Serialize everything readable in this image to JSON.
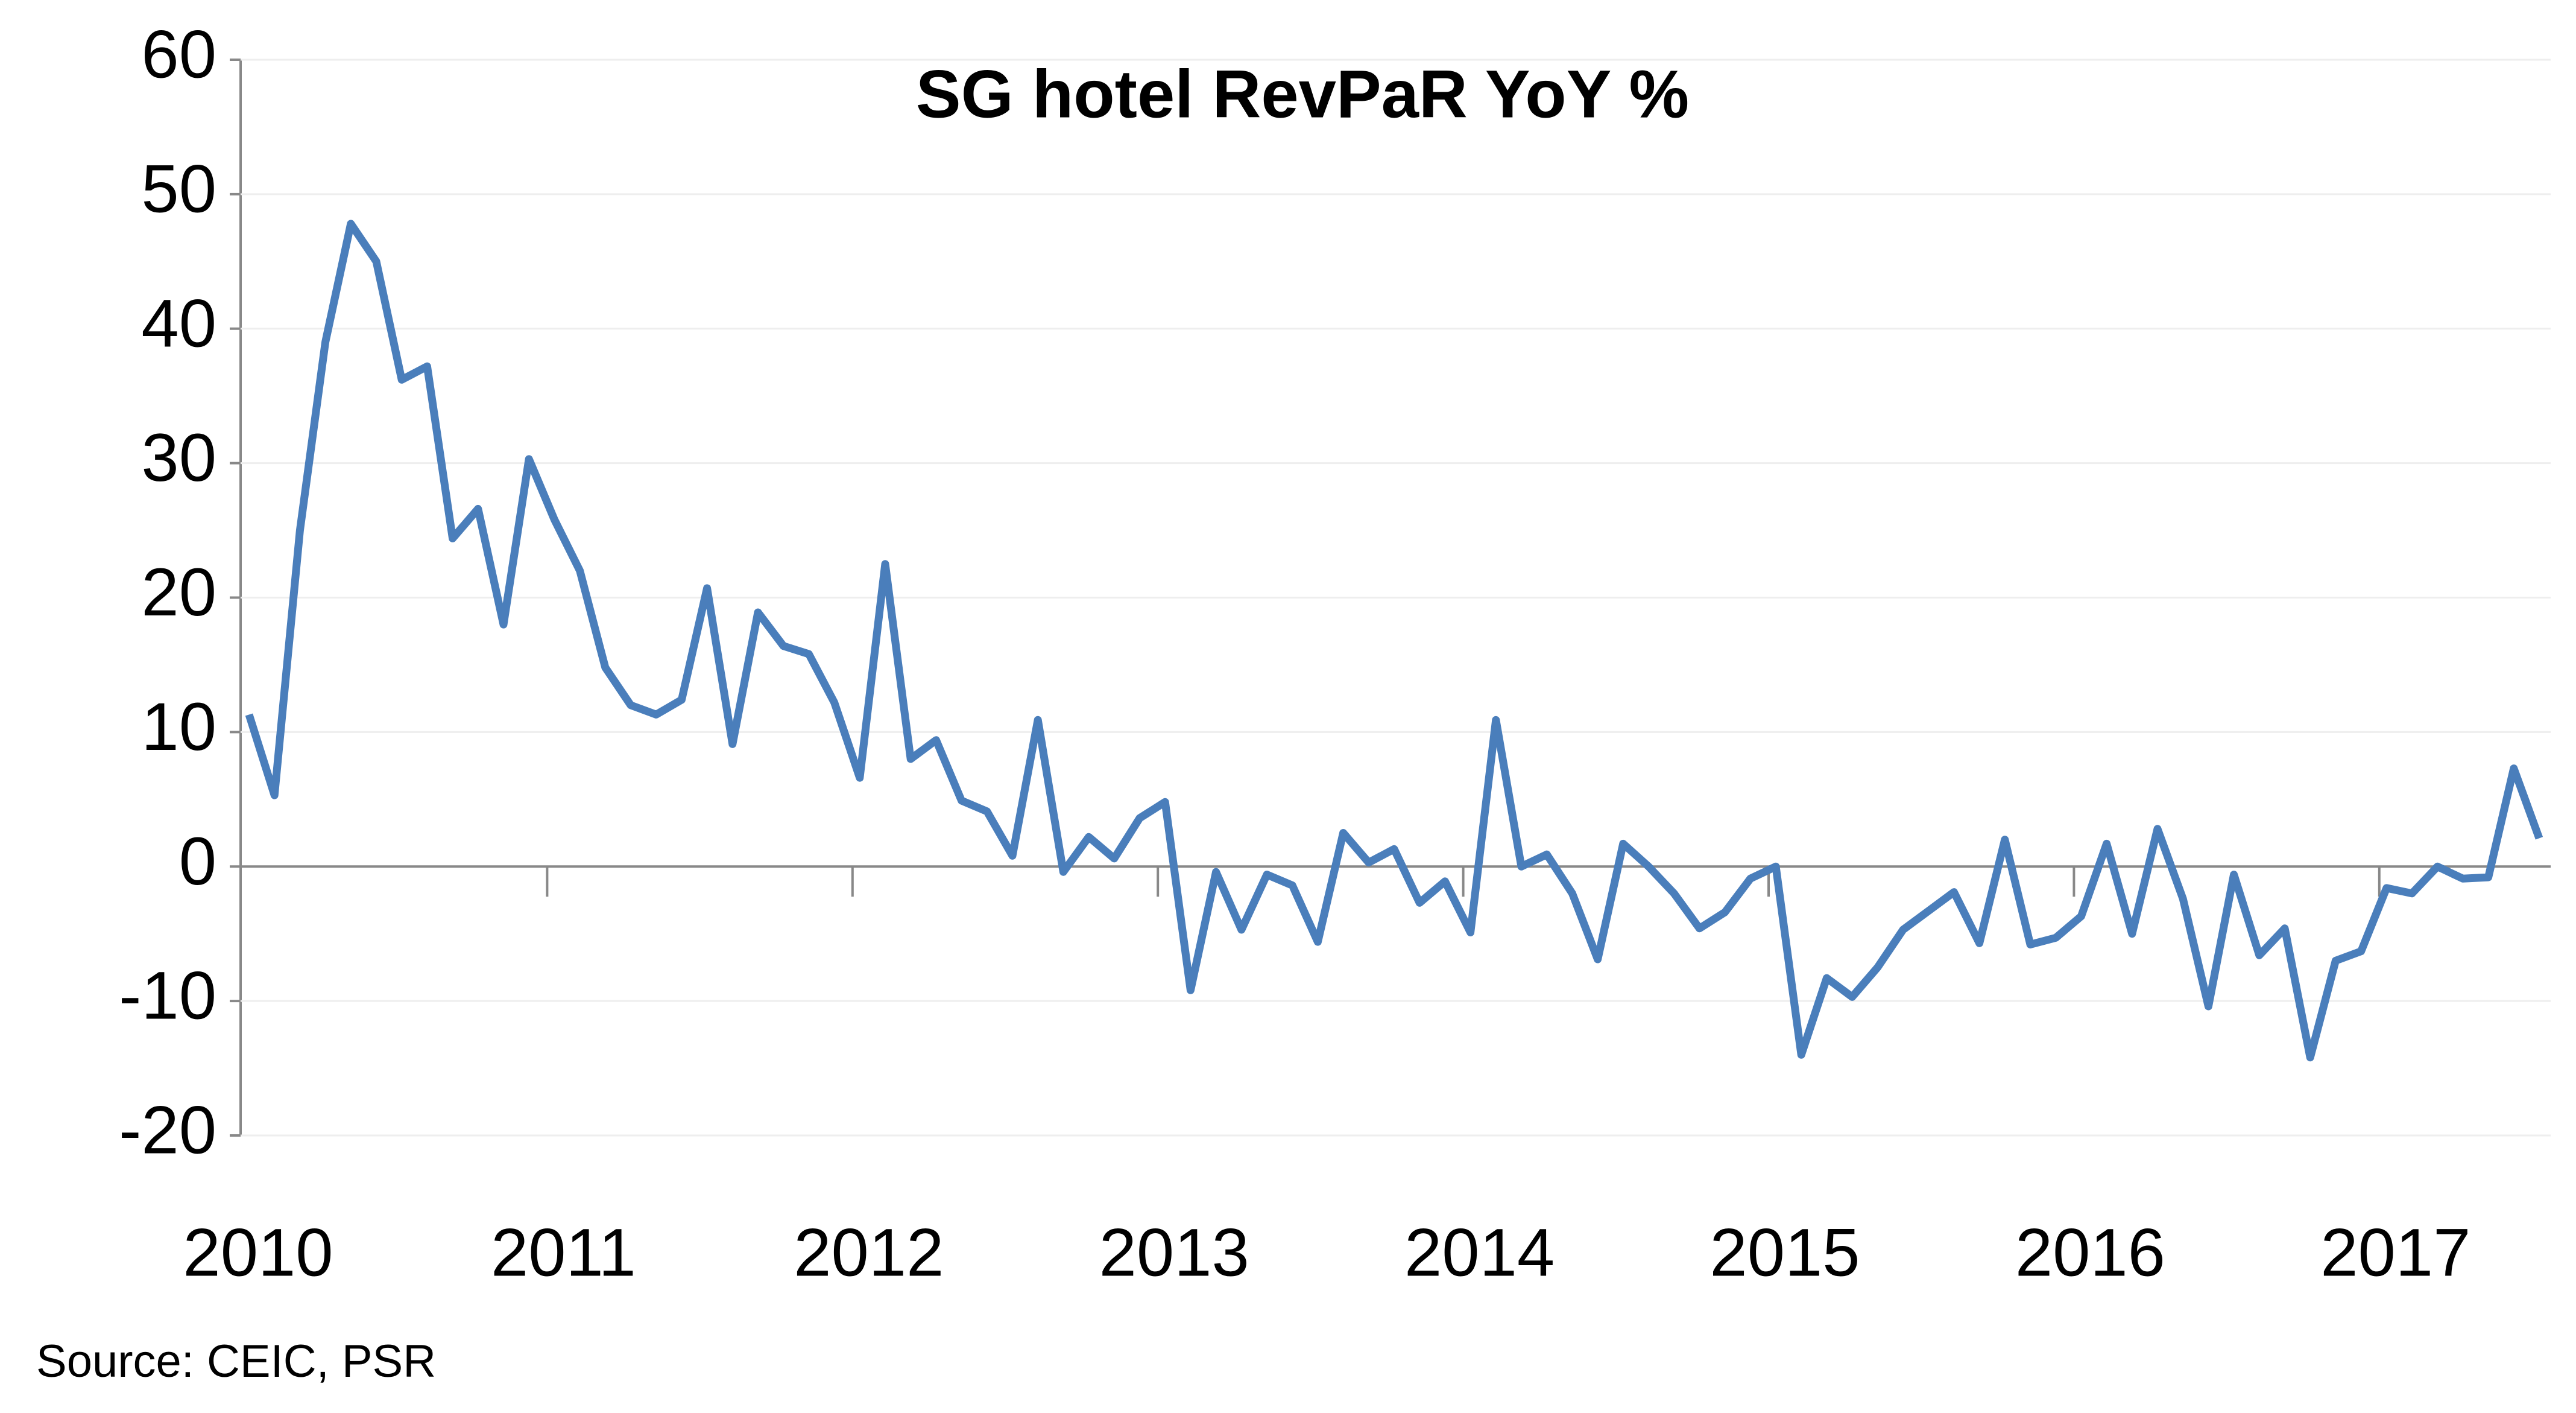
{
  "chart_data": {
    "type": "line",
    "title": "SG hotel RevPaR YoY %",
    "source": "Source: CEIC, PSR",
    "categories": [
      "2010",
      null,
      null,
      null,
      null,
      null,
      null,
      null,
      null,
      null,
      null,
      null,
      "2011",
      null,
      null,
      null,
      null,
      null,
      null,
      null,
      null,
      null,
      null,
      null,
      "2012",
      null,
      null,
      null,
      null,
      null,
      null,
      null,
      null,
      null,
      null,
      null,
      "2013",
      null,
      null,
      null,
      null,
      null,
      null,
      null,
      null,
      null,
      null,
      null,
      "2014",
      null,
      null,
      null,
      null,
      null,
      null,
      null,
      null,
      null,
      null,
      null,
      "2015",
      null,
      null,
      null,
      null,
      null,
      null,
      null,
      null,
      null,
      null,
      null,
      "2016",
      null,
      null,
      null,
      null,
      null,
      null,
      null,
      null,
      null,
      null,
      null,
      "2017",
      null,
      null,
      null,
      null,
      null,
      null
    ],
    "values": [
      11.3,
      5.3,
      25,
      39,
      47.8,
      45,
      36.2,
      37.2,
      24.4,
      26.6,
      18,
      30.3,
      25.8,
      22,
      14.8,
      12,
      11.3,
      12.4,
      20.7,
      9.1,
      18.9,
      16.4,
      15.8,
      12.2,
      6.6,
      22.5,
      8,
      9.4,
      4.9,
      4.1,
      0.8,
      10.9,
      -0.4,
      2.2,
      0.6,
      3.6,
      4.8,
      -9.2,
      -0.4,
      -4.7,
      -0.6,
      -1.4,
      -5.6,
      2.5,
      0.3,
      1.3,
      -2.7,
      -1.1,
      -4.9,
      10.9,
      0,
      0.9,
      -2,
      -6.9,
      1.7,
      0,
      -2,
      -4.6,
      -3.4,
      -0.9,
      0,
      -14,
      -8.3,
      -9.7,
      -7.5,
      -4.7,
      -3.3,
      -1.9,
      -5.7,
      2,
      -5.8,
      -5.3,
      -3.7,
      1.7,
      -5,
      2.8,
      -2.4,
      -10.4,
      -0.6,
      -6.6,
      -4.6,
      -14.2,
      -7,
      -6.3,
      -1.6,
      -2,
      0,
      -0.9,
      -0.8,
      7.3,
      2.1
    ],
    "color": "#4a7ebb",
    "ylim": [
      -20,
      60
    ],
    "yticks": [
      -20,
      -10,
      0,
      10,
      20,
      30,
      40,
      50,
      60
    ],
    "grid": true
  }
}
